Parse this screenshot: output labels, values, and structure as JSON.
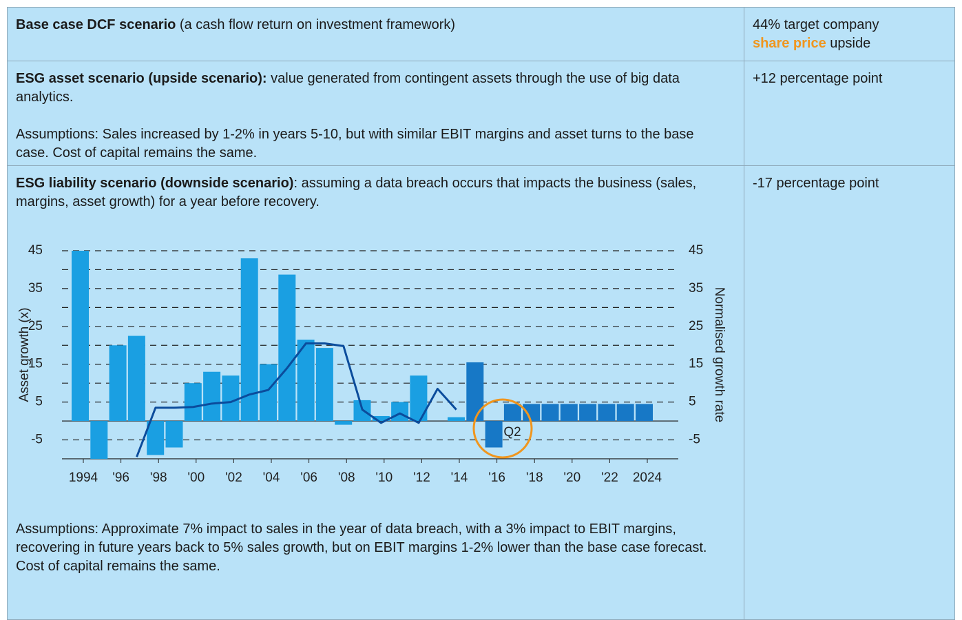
{
  "table": {
    "rows": [
      {
        "heading": "Base case DCF scenario",
        "text": "(a cash flow return on investment framework)",
        "value": "44% target company",
        "value_highlight": "share price",
        "value_suffix": "upside"
      },
      {
        "heading": "ESG asset scenario (upside scenario):",
        "text": "value generated from contingent assets through the use of big data analytics.",
        "notes": "Assumptions: Sales increased by 1-2% in years 5-10, but with similar EBIT margins and asset turns to the base case. Cost of capital remains the same.",
        "value": "+12 percentage point"
      },
      {
        "heading": "ESG liability scenario (downside scenario)",
        "text": ": assuming a data breach occurs that impacts the business (sales, margins, asset growth) for a year before recovery.",
        "notes": "Assumptions: Approximate 7% impact to sales in the year of data breach, with a 3% impact to EBIT margins, recovering in future years back to 5% sales growth, but on EBIT margins 1-2% lower than the base case forecast. Cost of capital remains the same.",
        "value": "-17 percentage point"
      }
    ]
  },
  "chart_data": {
    "type": "bar",
    "y_label": "Asset growth (x)",
    "y2_label": "Normalised growth rate",
    "categories": [
      "1994",
      null,
      "'96",
      null,
      "'98",
      null,
      "'00",
      null,
      "'02",
      null,
      "'04",
      null,
      "'06",
      null,
      "'08",
      null,
      "'10",
      null,
      "'12",
      null,
      "'14",
      null,
      "'16",
      null,
      "'18",
      null,
      "'20",
      null,
      "'22",
      null,
      "2024"
    ],
    "values": [
      45,
      -10,
      20,
      22.5,
      -9,
      -7,
      10,
      13,
      12,
      43,
      15,
      38.7,
      21.5,
      19.3,
      -1,
      5.5,
      1.3,
      5,
      12,
      null,
      1,
      15.5,
      -7,
      4.5,
      4.5,
      4.5,
      4.5,
      4.5,
      4.5,
      4.5,
      4.5
    ],
    "colors": [
      "#1a9fe2",
      "#1a9fe2",
      "#1a9fe2",
      "#1a9fe2",
      "#1a9fe2",
      "#1a9fe2",
      "#1a9fe2",
      "#1a9fe2",
      "#1a9fe2",
      "#1a9fe2",
      "#1a9fe2",
      "#1a9fe2",
      "#1a9fe2",
      "#1a9fe2",
      "#1a9fe2",
      "#1a9fe2",
      "#1a9fe2",
      "#1a9fe2",
      "#1a9fe2",
      "#1a9fe2",
      "#1a9fe2",
      "#1778c6",
      "#1778c6",
      "#1778c6",
      "#1778c6",
      "#1778c6",
      "#1778c6",
      "#1778c6",
      "#1778c6",
      "#1778c6",
      "#1778c6"
    ],
    "line": {
      "color": "#0b4c9c",
      "axis": "y2",
      "values": [
        null,
        null,
        null,
        -9.5,
        3.5,
        3.5,
        3.7,
        4.6,
        5,
        7,
        8.2,
        14,
        20.5,
        20.5,
        19.8,
        3,
        -0.5,
        2,
        -0.5,
        8.5,
        3,
        null,
        null,
        null,
        null,
        null,
        null,
        null,
        null,
        null,
        null
      ]
    },
    "ylim": [
      -10,
      45
    ],
    "yticks": [
      45,
      35,
      25,
      15,
      5,
      -5
    ],
    "y2lim": [
      -10,
      45
    ],
    "y2ticks": [
      45,
      35,
      25,
      15,
      5,
      -5
    ],
    "grid": [
      40,
      30,
      20,
      10,
      0,
      -10
    ],
    "annotation": {
      "text": "Q2",
      "color": "#f0961e"
    }
  }
}
